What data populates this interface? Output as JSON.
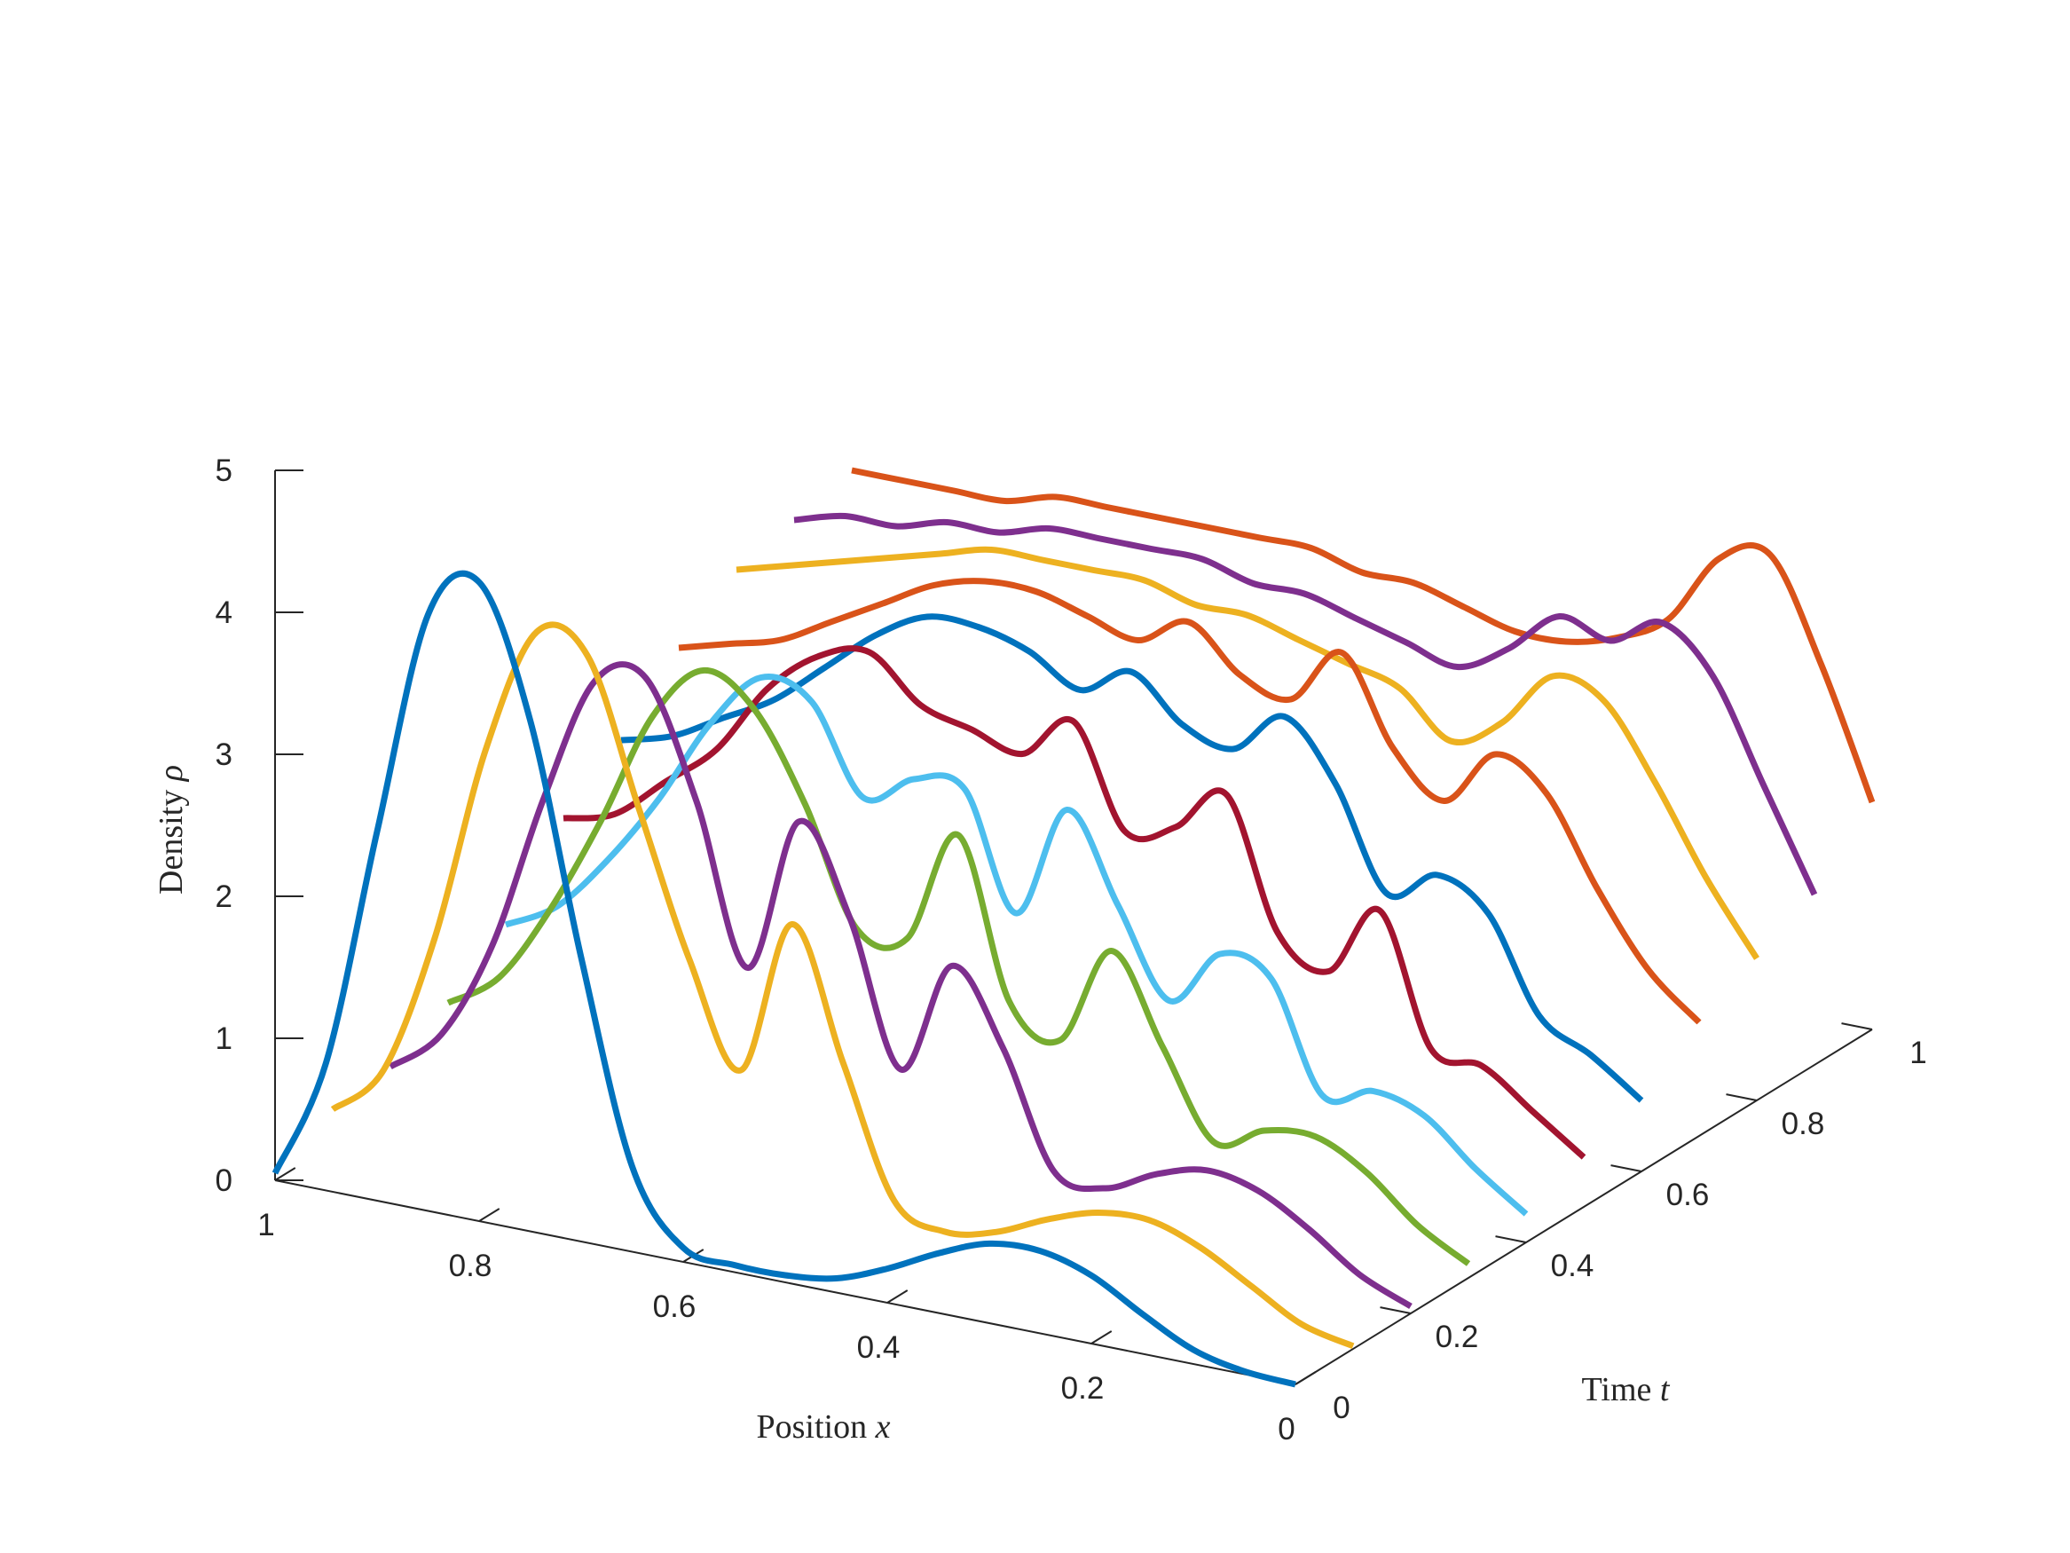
{
  "chart_data": {
    "type": "line",
    "projection": "3d waterfall",
    "x_axis": {
      "ticks": [
        "0",
        "0.2",
        "0.4",
        "0.6",
        "0.8",
        "1"
      ],
      "range": [
        0,
        1
      ]
    },
    "y_axis": {
      "ticks": [
        "0",
        "0.2",
        "0.4",
        "0.6",
        "0.8",
        "1"
      ],
      "range": [
        0,
        1
      ]
    },
    "z_axis": {
      "ticks": [
        "0",
        "1",
        "2",
        "3",
        "4",
        "5"
      ],
      "range": [
        0,
        5
      ]
    },
    "xlabel": {
      "text": "Position",
      "var": "x"
    },
    "ylabel": {
      "text": "Time",
      "var": "t"
    },
    "zlabel": {
      "text": "Density",
      "var": "ρ"
    },
    "grid": false,
    "series": [
      {
        "t": 0.0,
        "color": "#0072BD",
        "x": [
          0,
          0.05,
          0.1,
          0.15,
          0.2,
          0.25,
          0.3,
          0.35,
          0.4,
          0.45,
          0.5,
          0.55,
          0.6,
          0.65,
          0.7,
          0.75,
          0.8,
          0.85,
          0.9,
          0.95,
          1.0
        ],
        "rho": [
          0.0,
          0.02,
          0.1,
          0.28,
          0.48,
          0.58,
          0.56,
          0.42,
          0.24,
          0.1,
          0.05,
          0.05,
          0.1,
          0.6,
          2.0,
          3.6,
          4.5,
          4.2,
          2.6,
          0.9,
          0.05
        ]
      },
      {
        "t": 0.1,
        "color": "#EDB120",
        "x": [
          0,
          0.05,
          0.1,
          0.15,
          0.2,
          0.25,
          0.3,
          0.35,
          0.4,
          0.45,
          0.5,
          0.55,
          0.6,
          0.65,
          0.7,
          0.75,
          0.8,
          0.85,
          0.9,
          0.95,
          1.0
        ],
        "rho": [
          0.02,
          0.1,
          0.3,
          0.5,
          0.62,
          0.6,
          0.48,
          0.32,
          0.25,
          0.4,
          1.3,
          2.2,
          1.1,
          1.8,
          2.8,
          3.8,
          3.9,
          3.0,
          1.6,
          0.6,
          0.25
        ]
      },
      {
        "t": 0.2,
        "color": "#7E2F8E",
        "x": [
          0,
          0.05,
          0.1,
          0.15,
          0.2,
          0.25,
          0.3,
          0.35,
          0.4,
          0.45,
          0.5,
          0.55,
          0.6,
          0.65,
          0.7,
          0.75,
          0.8,
          0.85,
          0.9,
          0.95,
          1.0
        ],
        "rho": [
          0.05,
          0.2,
          0.45,
          0.65,
          0.72,
          0.62,
          0.45,
          0.5,
          1.3,
          1.8,
          1.0,
          2.0,
          2.6,
          1.5,
          2.6,
          3.4,
          3.3,
          2.4,
          1.3,
          0.6,
          0.3
        ]
      },
      {
        "t": 0.3,
        "color": "#77AC30",
        "x": [
          0,
          0.05,
          0.1,
          0.15,
          0.2,
          0.25,
          0.3,
          0.35,
          0.4,
          0.45,
          0.5,
          0.55,
          0.6,
          0.65,
          0.7,
          0.75,
          0.8,
          0.85,
          0.9,
          0.95,
          1.0
        ],
        "rho": [
          0.1,
          0.3,
          0.6,
          0.78,
          0.75,
          0.6,
          1.2,
          1.8,
          1.1,
          1.3,
          2.4,
          1.6,
          1.6,
          2.4,
          3.0,
          3.2,
          2.8,
          2.0,
          1.3,
          0.75,
          0.5
        ]
      },
      {
        "t": 0.4,
        "color": "#4DBEEE",
        "x": [
          0,
          0.05,
          0.1,
          0.15,
          0.2,
          0.25,
          0.3,
          0.35,
          0.4,
          0.45,
          0.5,
          0.55,
          0.6,
          0.65,
          0.7,
          0.75,
          0.8,
          0.85,
          0.9,
          0.95,
          1.0
        ],
        "rho": [
          0.2,
          0.45,
          0.75,
          0.85,
          0.75,
          1.5,
          1.6,
          1.2,
          1.8,
          2.4,
          1.6,
          2.4,
          2.4,
          2.2,
          2.8,
          2.9,
          2.5,
          1.9,
          1.4,
          1.0,
          0.8
        ]
      },
      {
        "t": 0.5,
        "color": "#A2142F",
        "x": [
          0,
          0.05,
          0.1,
          0.15,
          0.2,
          0.25,
          0.3,
          0.35,
          0.4,
          0.45,
          0.5,
          0.55,
          0.6,
          0.65,
          0.7,
          0.75,
          0.8,
          0.85,
          0.9,
          0.95,
          1.0
        ],
        "rho": [
          0.35,
          0.6,
          0.85,
          0.9,
          1.8,
          1.3,
          1.5,
          2.4,
          2.1,
          2.0,
          2.7,
          2.4,
          2.5,
          2.6,
          2.9,
          2.8,
          2.5,
          2.0,
          1.7,
          1.4,
          1.3
        ]
      },
      {
        "t": 0.6,
        "color": "#0072BD",
        "x": [
          0,
          0.05,
          0.1,
          0.15,
          0.2,
          0.25,
          0.3,
          0.35,
          0.4,
          0.45,
          0.5,
          0.55,
          0.6,
          0.65,
          0.7,
          0.75,
          0.8,
          0.85,
          0.9,
          0.95,
          1.0
        ],
        "rho": [
          0.5,
          0.75,
          0.95,
          1.6,
          1.8,
          1.6,
          2.3,
          2.7,
          2.4,
          2.5,
          2.8,
          2.6,
          2.8,
          2.9,
          2.9,
          2.7,
          2.4,
          2.1,
          1.9,
          1.7,
          1.6
        ]
      },
      {
        "t": 0.7,
        "color": "#D95319",
        "x": [
          0,
          0.05,
          0.1,
          0.15,
          0.2,
          0.25,
          0.3,
          0.35,
          0.4,
          0.45,
          0.5,
          0.55,
          0.6,
          0.65,
          0.7,
          0.75,
          0.8,
          0.85,
          0.9,
          0.95,
          1.0
        ],
        "rho": [
          0.8,
          1.1,
          1.6,
          2.2,
          2.4,
          2.0,
          2.3,
          2.9,
          2.5,
          2.6,
          2.9,
          2.7,
          2.8,
          2.9,
          2.9,
          2.8,
          2.6,
          2.4,
          2.2,
          2.1,
          2.0
        ]
      },
      {
        "t": 0.8,
        "color": "#EDB120",
        "x": [
          0,
          0.05,
          0.1,
          0.15,
          0.2,
          0.25,
          0.3,
          0.35,
          0.4,
          0.45,
          0.5,
          0.55,
          0.6,
          0.65,
          0.7,
          0.75,
          0.8,
          0.85,
          0.9,
          0.95,
          1.0
        ],
        "rho": [
          1.0,
          1.5,
          2.1,
          2.6,
          2.7,
          2.3,
          2.1,
          2.4,
          2.5,
          2.6,
          2.7,
          2.7,
          2.8,
          2.8,
          2.8,
          2.8,
          2.7,
          2.6,
          2.5,
          2.4,
          2.3
        ]
      },
      {
        "t": 0.9,
        "color": "#7E2F8E",
        "x": [
          0,
          0.05,
          0.1,
          0.15,
          0.2,
          0.25,
          0.3,
          0.35,
          0.4,
          0.45,
          0.5,
          0.55,
          0.6,
          0.65,
          0.7,
          0.75,
          0.8,
          0.85,
          0.9,
          0.95,
          1.0
        ],
        "rho": [
          1.2,
          1.9,
          2.6,
          2.9,
          2.7,
          2.8,
          2.5,
          2.3,
          2.4,
          2.5,
          2.6,
          2.6,
          2.7,
          2.7,
          2.7,
          2.7,
          2.6,
          2.6,
          2.5,
          2.5,
          2.4
        ]
      },
      {
        "t": 1.0,
        "color": "#D95319",
        "x": [
          0,
          0.05,
          0.1,
          0.15,
          0.2,
          0.25,
          0.3,
          0.35,
          0.4,
          0.45,
          0.5,
          0.55,
          0.6,
          0.65,
          0.7,
          0.75,
          0.8,
          0.85,
          0.9,
          0.95,
          1.0
        ],
        "rho": [
          1.6,
          2.5,
          3.2,
          3.1,
          2.6,
          2.4,
          2.3,
          2.3,
          2.4,
          2.5,
          2.5,
          2.6,
          2.6,
          2.6,
          2.6,
          2.6,
          2.6,
          2.5,
          2.5,
          2.5,
          2.5
        ]
      }
    ]
  }
}
